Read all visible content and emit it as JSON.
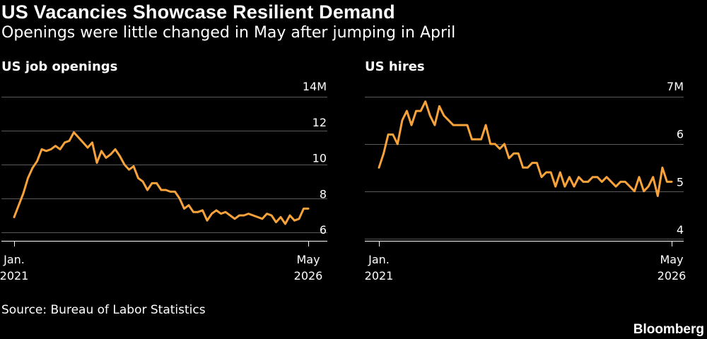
{
  "header": {
    "title": "US Vacancies Showcase Resilient Demand",
    "subtitle": "Openings were little changed in May after jumping in April"
  },
  "footer": {
    "source": "Source: Bureau of Labor Statistics",
    "brand": "Bloomberg"
  },
  "colors": {
    "background": "#000000",
    "line": "#f7a23b",
    "gridline": "#5a5a5a",
    "text": "#ffffff"
  },
  "chart_data": [
    {
      "type": "line",
      "title": "US job openings",
      "xlabel": "",
      "ylabel": "",
      "x_tick_labels": [
        {
          "line1": "Jan.",
          "line2": "2021"
        },
        {
          "line1": "May",
          "line2": "2026"
        }
      ],
      "y_ticks": [
        {
          "value": 6,
          "label": "6"
        },
        {
          "value": 8,
          "label": "8"
        },
        {
          "value": 10,
          "label": "10"
        },
        {
          "value": 12,
          "label": "12"
        },
        {
          "value": 14,
          "label": "14M"
        }
      ],
      "ylim": [
        5.5,
        14
      ],
      "grid": true,
      "series": [
        {
          "start": "2021-01",
          "values": [
            6.9,
            7.6,
            8.3,
            9.2,
            9.8,
            10.2,
            10.9,
            10.8,
            10.9,
            11.1,
            10.9,
            11.3,
            11.4,
            11.9,
            11.6,
            11.3,
            11.0,
            11.3,
            10.1,
            10.8,
            10.4,
            10.6,
            10.9,
            10.5,
            10.0,
            9.7,
            9.9,
            9.2,
            9.0,
            8.5,
            8.9,
            8.9,
            8.5,
            8.5,
            8.4,
            8.4,
            8.0,
            7.4,
            7.6,
            7.2,
            7.2,
            7.3,
            6.7,
            7.1,
            7.3,
            7.1,
            7.2,
            7.0,
            6.8,
            7.0,
            7.0,
            7.1,
            7.0,
            6.9,
            6.8,
            7.1,
            7.0,
            6.6,
            6.9,
            6.5,
            7.0,
            6.7,
            6.8,
            7.4,
            7.4
          ]
        }
      ]
    },
    {
      "type": "line",
      "title": "US hires",
      "xlabel": "",
      "ylabel": "",
      "x_tick_labels": [
        {
          "line1": "Jan.",
          "line2": "2021"
        },
        {
          "line1": "May",
          "line2": "2026"
        }
      ],
      "y_ticks": [
        {
          "value": 4,
          "label": "4"
        },
        {
          "value": 5,
          "label": "5"
        },
        {
          "value": 6,
          "label": "6"
        },
        {
          "value": 7,
          "label": "7M"
        }
      ],
      "ylim": [
        3.95,
        7.0
      ],
      "grid": true,
      "series": [
        {
          "start": "2021-01",
          "values": [
            5.5,
            5.8,
            6.2,
            6.2,
            6.0,
            6.5,
            6.7,
            6.4,
            6.7,
            6.7,
            6.9,
            6.6,
            6.4,
            6.8,
            6.6,
            6.5,
            6.4,
            6.4,
            6.4,
            6.4,
            6.1,
            6.1,
            6.1,
            6.4,
            6.0,
            6.0,
            5.9,
            6.0,
            5.7,
            5.8,
            5.8,
            5.5,
            5.5,
            5.6,
            5.6,
            5.3,
            5.4,
            5.4,
            5.1,
            5.4,
            5.1,
            5.3,
            5.1,
            5.3,
            5.2,
            5.2,
            5.3,
            5.3,
            5.2,
            5.3,
            5.2,
            5.1,
            5.2,
            5.2,
            5.1,
            5.0,
            5.3,
            5.0,
            5.1,
            5.3,
            4.9,
            5.5,
            5.2,
            5.2
          ]
        }
      ]
    }
  ]
}
